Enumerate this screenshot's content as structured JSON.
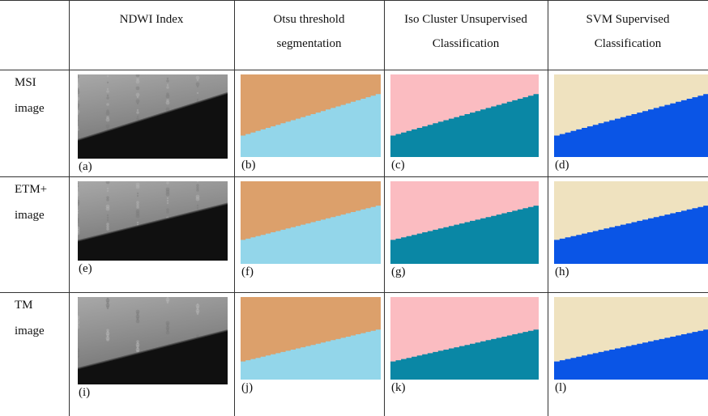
{
  "headers": [
    [
      "NDWI Index"
    ],
    [
      "Otsu threshold",
      "segmentation"
    ],
    [
      "Iso Cluster Unsupervised",
      "Classification"
    ],
    [
      "SVM Supervised",
      "Classification"
    ]
  ],
  "rows": [
    {
      "label": [
        "MSI",
        "image"
      ],
      "captions": [
        "(a)",
        "(b)",
        "(c)",
        "(d)"
      ]
    },
    {
      "label": [
        "ETM+",
        "image"
      ],
      "captions": [
        "(e)",
        "(f)",
        "(g)",
        "(h)"
      ]
    },
    {
      "label": [
        "TM",
        "image"
      ],
      "captions": [
        "(i)",
        "(j)",
        "(k)",
        "(l)"
      ]
    }
  ],
  "colors": {
    "otsu_land": "#dca06b",
    "otsu_water": "#93d6ea",
    "iso_land": "#fbbcc1",
    "iso_water": "#0a87a5",
    "svm_land": "#efe2bf",
    "svm_water": "#0a55e6",
    "ndwi_land": "#9a9a9a",
    "ndwi_water": "#101010"
  }
}
